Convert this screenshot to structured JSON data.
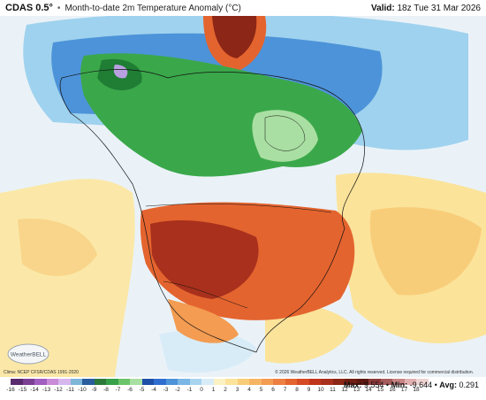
{
  "header": {
    "model": "CDAS 0.5°",
    "separator": "•",
    "title": "Month-to-date 2m Temperature Anomaly (°C)",
    "valid_label": "Valid:",
    "valid_value": "18z Tue 31 Mar 2026"
  },
  "map": {
    "region": "North America",
    "colors": {
      "ocean_neutral": "#e8f0f7",
      "warm_light": "#fbe39a",
      "warm_mid": "#f7b36a",
      "warm_strong": "#e4642f",
      "warm_extreme": "#a8301c",
      "cool_light": "#9fd2ee",
      "cool_mid": "#4d93d9",
      "cool_strong": "#2b5fc2",
      "very_cold": "#3aa84a",
      "deep_cold": "#1f7d34",
      "coldest": "#b9a0e0"
    }
  },
  "logo_text": "WeatherBELL",
  "credits": {
    "left": "Clima: NCEP CFSR/CDAS 1991-2020",
    "right": "© 2026 WeatherBELL Analytics, LLC. All rights reserved. License required for commercial distribution."
  },
  "colorbar": {
    "labels": [
      "-16",
      "-15",
      "-14",
      "-13",
      "-12",
      "-11",
      "-10",
      "-9",
      "-8",
      "-7",
      "-6",
      "-5",
      "-4",
      "-3",
      "-2",
      "-1",
      "0",
      "1",
      "2",
      "3",
      "4",
      "5",
      "6",
      "7",
      "8",
      "9",
      "10",
      "11",
      "12",
      "13",
      "14",
      "15",
      "16",
      "17",
      "18"
    ],
    "colors": [
      "#5a2a6e",
      "#7b3f94",
      "#a15ec0",
      "#c98ad8",
      "#d7b7ee",
      "#7eb6d8",
      "#2a5c9e",
      "#2c7a3a",
      "#37a04a",
      "#6cc46a",
      "#a9dfa2",
      "#1f4ea8",
      "#2f6ed0",
      "#4d93d9",
      "#7ab6e6",
      "#a9d4f0",
      "#d8ecf7",
      "#fbf2c3",
      "#fbe39a",
      "#f8cd7a",
      "#f6b564",
      "#f39c52",
      "#ee7f42",
      "#e4642f",
      "#d64a24",
      "#c1351c",
      "#a8301c",
      "#8c2616",
      "#711d12",
      "#5c1810",
      "#8b3a3a",
      "#a65c5c",
      "#c88484",
      "#e0b0b0",
      "#eed3d3"
    ]
  },
  "stats": {
    "max_label": "Max:",
    "max_value": "9.554",
    "min_label": "Min:",
    "min_value": "-9.644",
    "avg_label": "Avg:",
    "avg_value": "0.291"
  }
}
